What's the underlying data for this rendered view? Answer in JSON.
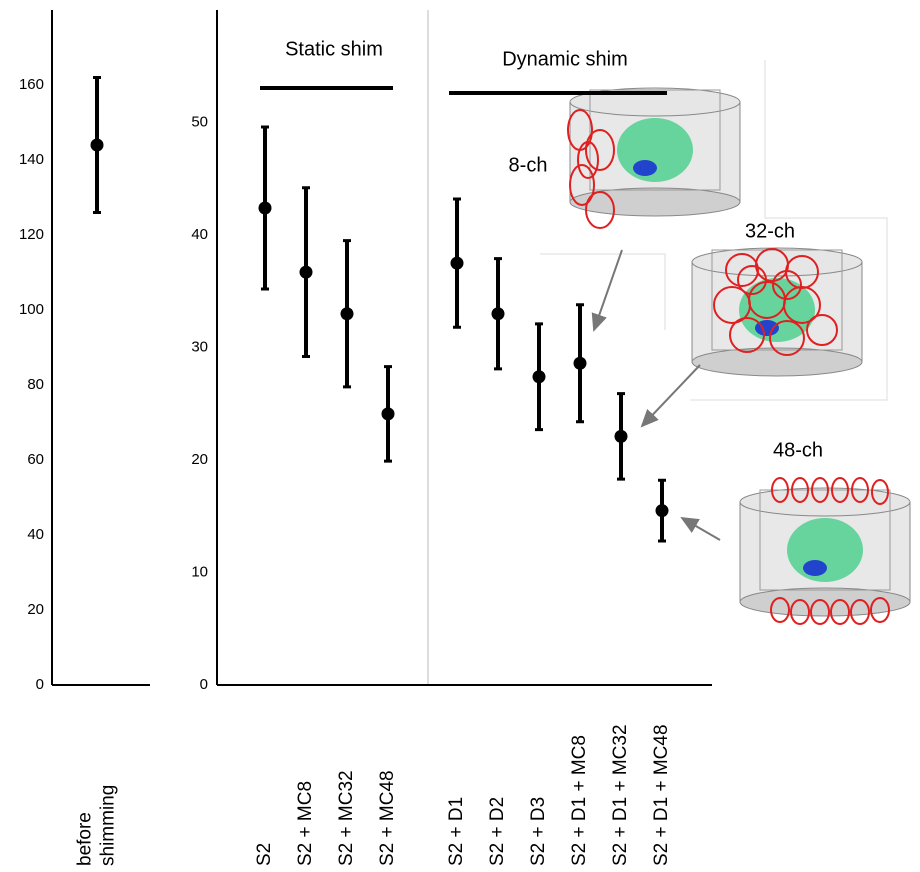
{
  "chart_data": [
    {
      "type": "errorbar",
      "categories": [
        "before shimming"
      ],
      "values": [
        144
      ],
      "errors": [
        18
      ],
      "color": "#000000",
      "ylim": [
        0,
        180
      ],
      "yticks": [
        0,
        20,
        40,
        60,
        80,
        100,
        120,
        140,
        160
      ]
    },
    {
      "type": "errorbar",
      "categories": [
        "S2",
        "S2 + MC8",
        "S2 + MC32",
        "S2 + MC48",
        "S2 + D1",
        "S2 + D2",
        "S2 + D3",
        "S2 + D1 + MC8",
        "S2 + D1 + MC32",
        "S2 + D1 + MC48"
      ],
      "values": [
        42.4,
        36.7,
        33.0,
        24.1,
        37.5,
        33.0,
        27.4,
        28.6,
        22.1,
        15.5
      ],
      "errors": [
        7.2,
        7.5,
        6.5,
        4.2,
        5.7,
        4.9,
        4.7,
        5.2,
        3.8,
        2.7
      ],
      "color": "#000000",
      "ylim": [
        0,
        60
      ],
      "yticks": [
        0,
        10,
        20,
        30,
        40,
        50
      ],
      "annotations": [
        "Static shim",
        "Dynamic shim",
        "8-ch",
        "32-ch",
        "48-ch"
      ]
    }
  ]
}
